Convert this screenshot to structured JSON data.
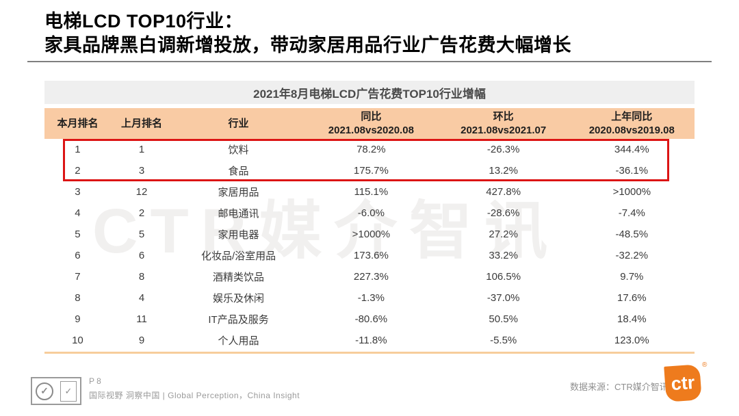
{
  "title": {
    "line1": "电梯LCD TOP10行业：",
    "line2": "家具品牌黑白调新增投放，带动家居用品行业广告花费大幅增长"
  },
  "table": {
    "caption": "2021年8月电梯LCD广告花费TOP10行业增幅",
    "columns": [
      {
        "label": "本月排名",
        "sub": ""
      },
      {
        "label": "上月排名",
        "sub": ""
      },
      {
        "label": "行业",
        "sub": ""
      },
      {
        "label": "同比",
        "sub": "2021.08vs2020.08"
      },
      {
        "label": "环比",
        "sub": "2021.08vs2021.07"
      },
      {
        "label": "上年同比",
        "sub": "2020.08vs2019.08"
      }
    ],
    "rows": [
      [
        "1",
        "1",
        "饮料",
        "78.2%",
        "-26.3%",
        "344.4%"
      ],
      [
        "2",
        "3",
        "食品",
        "175.7%",
        "13.2%",
        "-36.1%"
      ],
      [
        "3",
        "12",
        "家居用品",
        "115.1%",
        "427.8%",
        ">1000%"
      ],
      [
        "4",
        "2",
        "邮电通讯",
        "-6.0%",
        "-28.6%",
        "-7.4%"
      ],
      [
        "5",
        "5",
        "家用电器",
        ">1000%",
        "27.2%",
        "-48.5%"
      ],
      [
        "6",
        "6",
        "化妆品/浴室用品",
        "173.6%",
        "33.2%",
        "-32.2%"
      ],
      [
        "7",
        "8",
        "酒精类饮品",
        "227.3%",
        "106.5%",
        "9.7%"
      ],
      [
        "8",
        "4",
        "娱乐及休闲",
        "-1.3%",
        "-37.0%",
        "17.6%"
      ],
      [
        "9",
        "11",
        "IT产品及服务",
        "-80.6%",
        "50.5%",
        "18.4%"
      ],
      [
        "10",
        "9",
        "个人用品",
        "-11.8%",
        "-5.5%",
        "123.0%"
      ]
    ],
    "highlight": {
      "from_row": 1,
      "to_row": 2
    }
  },
  "watermark": {
    "text": "CTR媒介智讯"
  },
  "footer": {
    "page": "P 8",
    "tagline": "国际视野  洞察中国 | Global Perception，China Insight",
    "source_label": "数据来源：CTR媒介智讯",
    "logo_text": "ctr",
    "registered": "®",
    "cert_check": "✓"
  },
  "colors": {
    "header_bg": "#f9cba4",
    "caption_bg": "#efefef",
    "highlight": "#dc1414",
    "brand_orange": "#ee7b1d"
  }
}
